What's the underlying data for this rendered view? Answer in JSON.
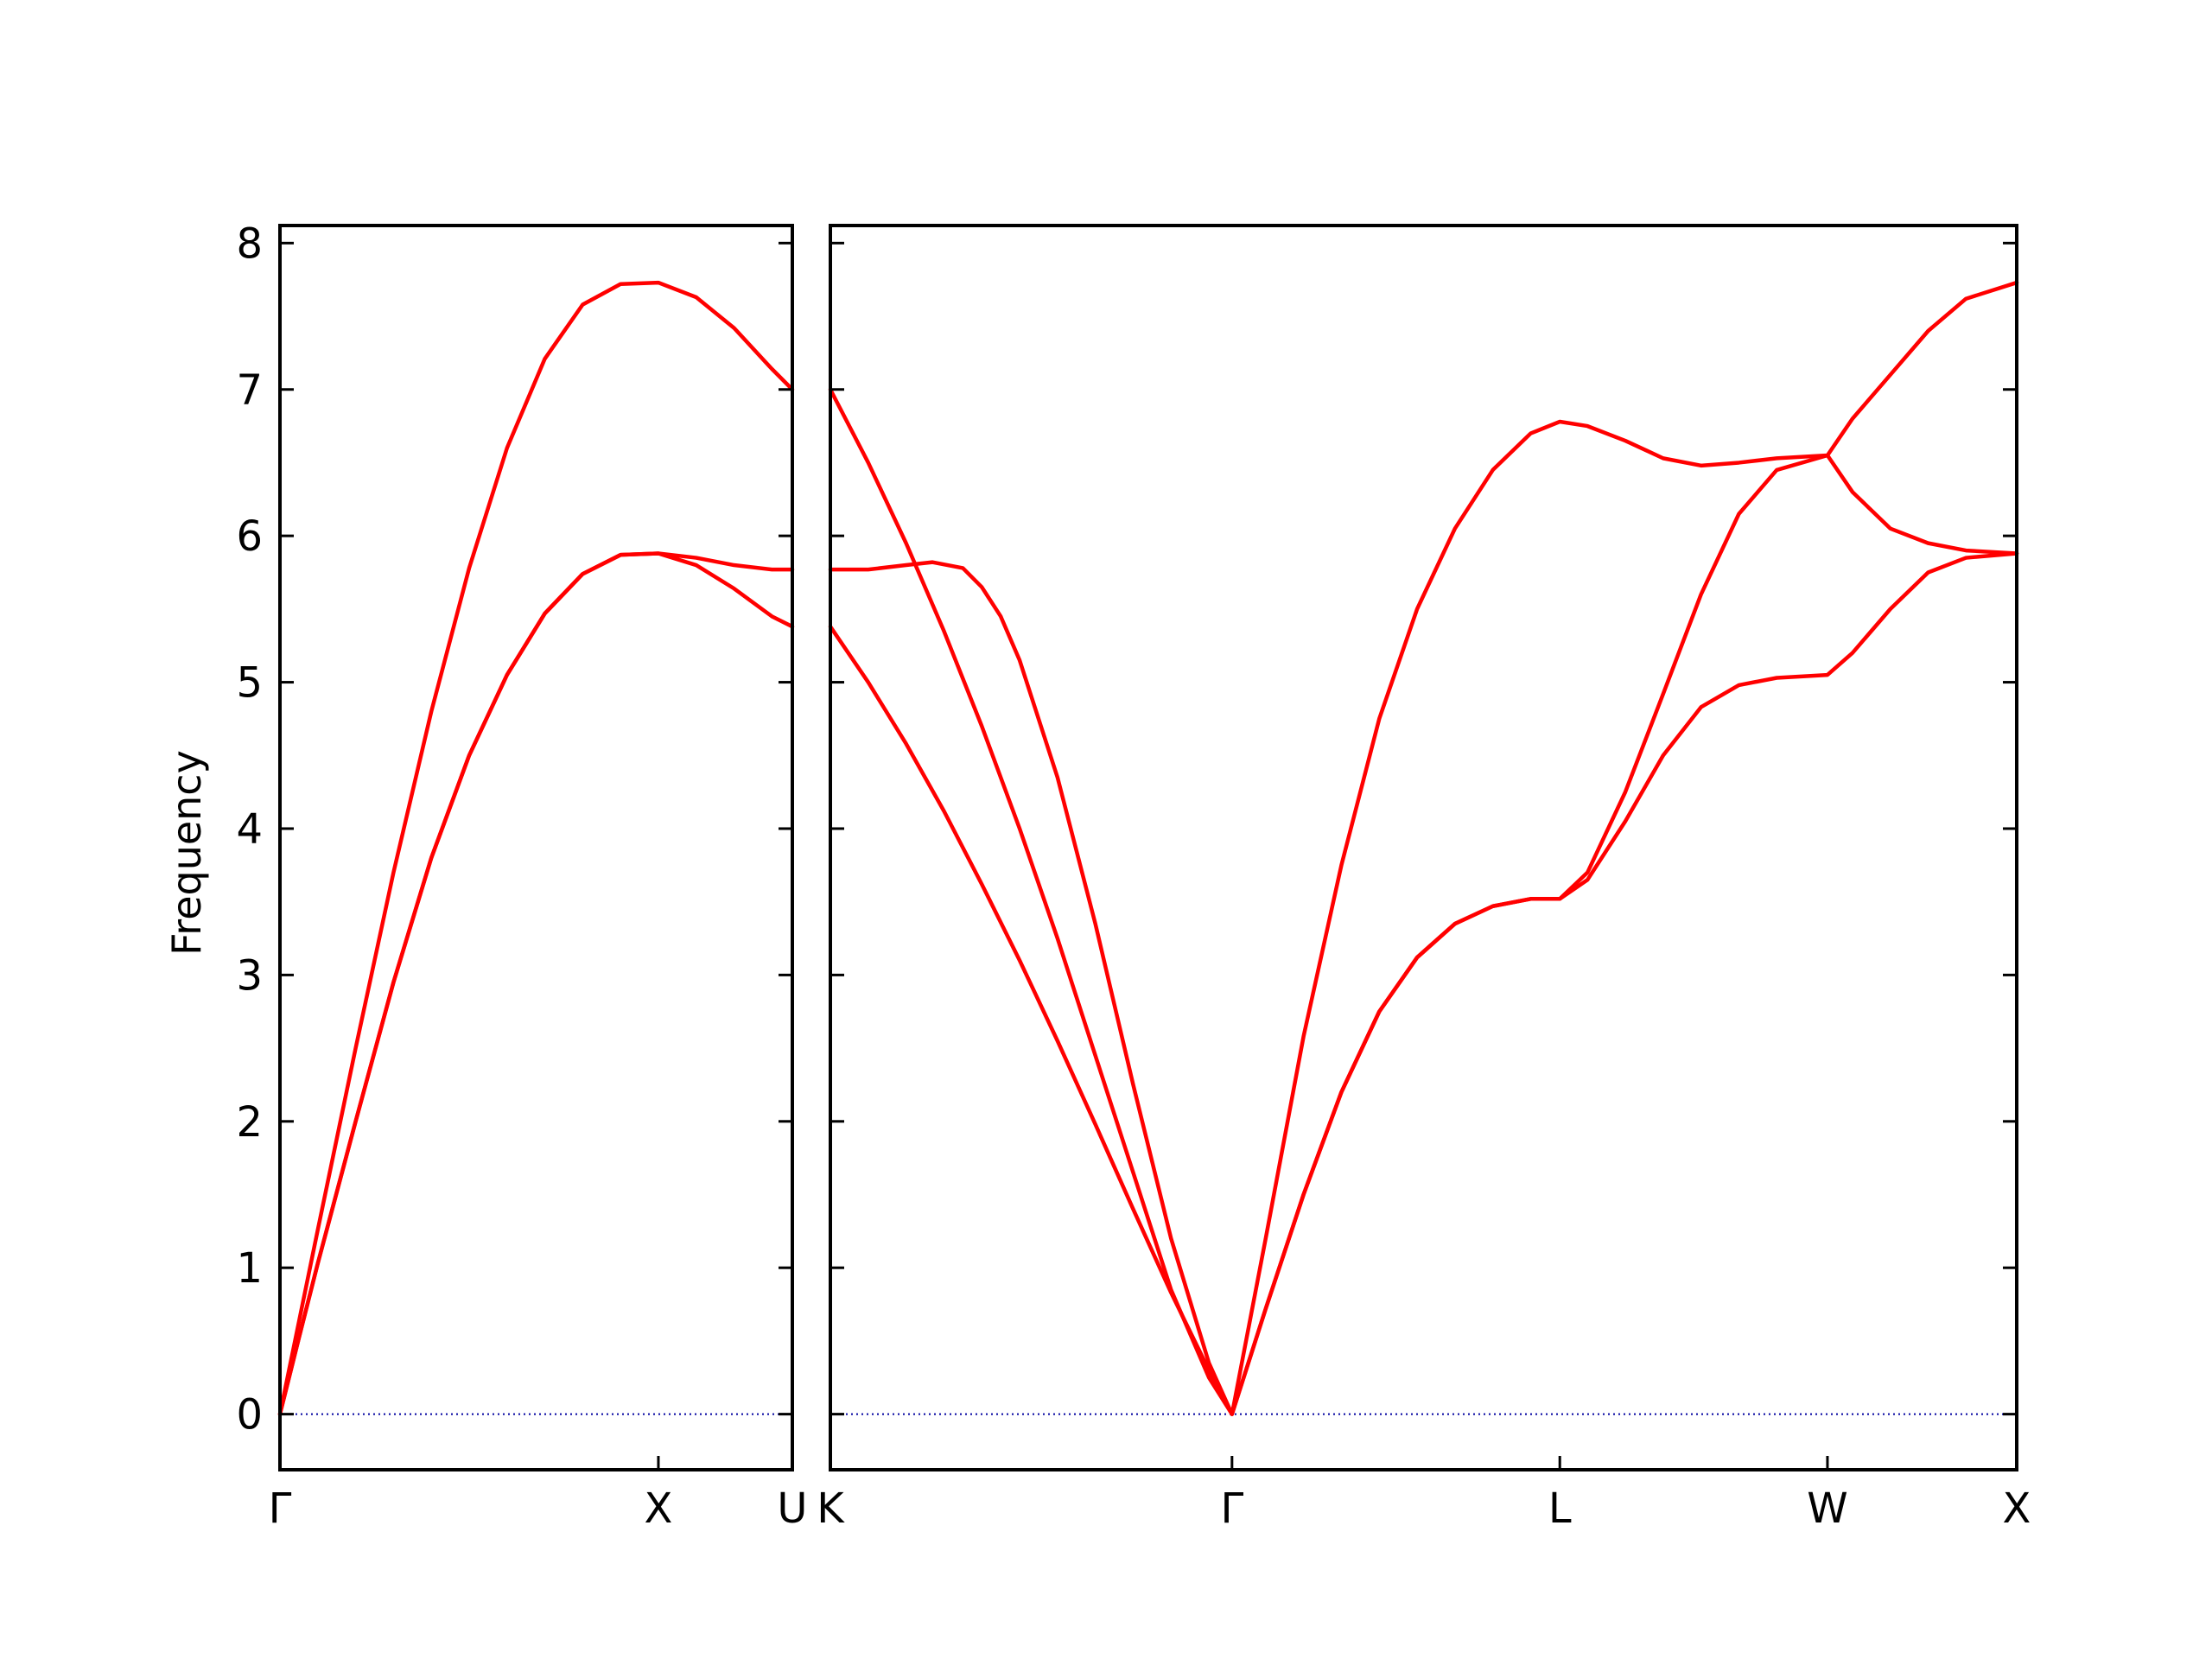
{
  "chart_data": {
    "type": "line",
    "ylabel": "Frequency",
    "ylim": [
      -0.38,
      8.12
    ],
    "y_ticks": [
      0,
      1,
      2,
      3,
      4,
      5,
      6,
      7,
      8
    ],
    "y_tick_labels": [
      "0",
      "1",
      "2",
      "3",
      "4",
      "5",
      "6",
      "7",
      "8"
    ],
    "grid": false,
    "line_color": "#ff0000",
    "zero_line_color": "#0000a0",
    "panels": [
      {
        "segment": "Γ-X-U",
        "x_labels": [
          "Γ",
          "X",
          "U"
        ],
        "x_label_positions": [
          0,
          1.0,
          1.354
        ],
        "xlim": [
          0,
          1.354
        ],
        "series": [
          {
            "x": [
              0,
              0.05,
              0.1,
              0.2,
              0.3,
              0.4,
              0.5,
              0.6,
              0.7,
              0.8,
              0.9,
              1.0,
              1.1,
              1.2,
              1.3,
              1.354
            ],
            "values": [
              0,
              0.63,
              1.26,
              2.5,
              3.7,
              4.8,
              5.78,
              6.6,
              7.21,
              7.58,
              7.72,
              7.73,
              7.63,
              7.42,
              7.14,
              7.0
            ]
          },
          {
            "x": [
              0,
              0.05,
              0.1,
              0.2,
              0.3,
              0.4,
              0.5,
              0.6,
              0.7,
              0.8,
              0.9,
              1.0,
              1.1,
              1.2,
              1.3,
              1.354
            ],
            "values": [
              0,
              0.52,
              1.03,
              2.0,
              2.95,
              3.8,
              4.5,
              5.05,
              5.47,
              5.74,
              5.87,
              5.88,
              5.85,
              5.8,
              5.77,
              5.77
            ]
          },
          {
            "x": [
              0,
              0.05,
              0.1,
              0.2,
              0.3,
              0.4,
              0.5,
              0.6,
              0.7,
              0.8,
              0.9,
              1.0,
              1.1,
              1.2,
              1.3,
              1.354
            ],
            "values": [
              0,
              0.52,
              1.03,
              2.0,
              2.95,
              3.8,
              4.5,
              5.05,
              5.47,
              5.74,
              5.87,
              5.88,
              5.8,
              5.64,
              5.45,
              5.38
            ]
          }
        ]
      },
      {
        "segment": "K-Γ-L-W-X",
        "x_labels": [
          "K",
          "Γ",
          "L",
          "W",
          "X"
        ],
        "x_label_positions": [
          0,
          1.061,
          1.927,
          2.634,
          3.134
        ],
        "xlim": [
          0,
          3.134
        ],
        "series": [
          {
            "x": [
              0,
              0.1,
              0.2,
              0.3,
              0.4,
              0.5,
              0.6,
              0.7,
              0.8,
              0.9,
              1.0,
              1.061,
              1.15,
              1.25,
              1.35,
              1.45,
              1.55,
              1.65,
              1.75,
              1.85,
              1.927,
              2.0,
              2.1,
              2.2,
              2.3,
              2.4,
              2.5,
              2.634,
              2.7,
              2.8,
              2.9,
              3.0,
              3.134
            ],
            "values": [
              7.0,
              6.5,
              5.95,
              5.35,
              4.7,
              4.0,
              3.25,
              2.45,
              1.65,
              0.85,
              0.25,
              0,
              1.2,
              2.58,
              3.75,
              4.75,
              5.5,
              6.05,
              6.45,
              6.7,
              6.78,
              6.75,
              6.65,
              6.53,
              6.48,
              6.5,
              6.53,
              6.55,
              6.8,
              7.1,
              7.4,
              7.62,
              7.73
            ]
          },
          {
            "x": [
              0,
              0.1,
              0.2,
              0.27,
              0.35,
              0.4,
              0.45,
              0.5,
              0.6,
              0.7,
              0.8,
              0.9,
              1.0,
              1.061,
              1.15,
              1.25,
              1.35,
              1.45,
              1.55,
              1.65,
              1.75,
              1.85,
              1.927,
              2.0,
              2.1,
              2.2,
              2.3,
              2.4,
              2.5,
              2.634,
              2.7,
              2.8,
              2.9,
              3.0,
              3.134
            ],
            "values": [
              5.77,
              5.77,
              5.8,
              5.82,
              5.78,
              5.65,
              5.45,
              5.15,
              4.35,
              3.35,
              2.25,
              1.2,
              0.35,
              0,
              0.72,
              1.5,
              2.2,
              2.75,
              3.12,
              3.35,
              3.47,
              3.52,
              3.52,
              3.7,
              4.25,
              4.92,
              5.6,
              6.15,
              6.45,
              6.55,
              6.3,
              6.05,
              5.95,
              5.9,
              5.88
            ]
          },
          {
            "x": [
              0,
              0.1,
              0.2,
              0.3,
              0.4,
              0.5,
              0.6,
              0.7,
              0.8,
              0.9,
              1.0,
              1.061,
              1.15,
              1.25,
              1.35,
              1.45,
              1.55,
              1.65,
              1.75,
              1.85,
              1.927,
              2.0,
              2.1,
              2.2,
              2.3,
              2.4,
              2.5,
              2.634,
              2.7,
              2.8,
              2.9,
              3.0,
              3.134
            ],
            "values": [
              5.38,
              5.0,
              4.58,
              4.12,
              3.62,
              3.1,
              2.55,
              1.98,
              1.4,
              0.83,
              0.3,
              0,
              0.72,
              1.5,
              2.2,
              2.75,
              3.12,
              3.35,
              3.47,
              3.52,
              3.52,
              3.65,
              4.05,
              4.5,
              4.83,
              4.98,
              5.03,
              5.05,
              5.2,
              5.5,
              5.75,
              5.85,
              5.88
            ]
          }
        ]
      }
    ]
  }
}
